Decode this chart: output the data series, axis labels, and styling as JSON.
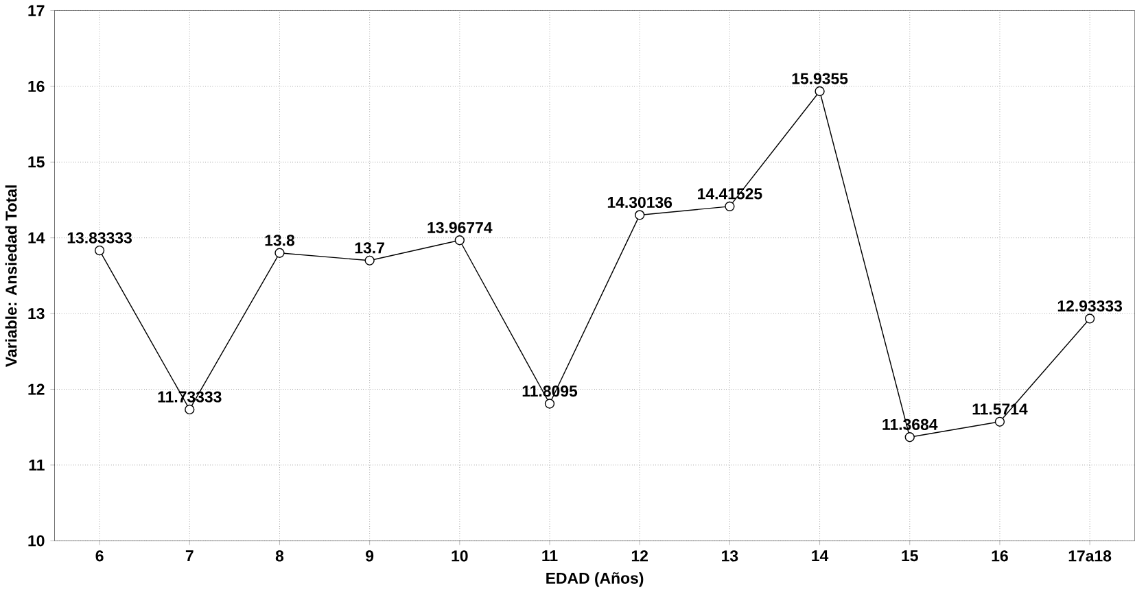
{
  "chart_data": {
    "type": "line",
    "xlabel": "EDAD (Años)",
    "ylabel": "Variable: Ansiedad Total",
    "categories": [
      "6",
      "7",
      "8",
      "9",
      "10",
      "11",
      "12",
      "13",
      "14",
      "15",
      "16",
      "17a18"
    ],
    "values": [
      13.83333,
      11.73333,
      13.8,
      13.7,
      13.96774,
      11.8095,
      14.30136,
      14.41525,
      15.9355,
      11.3684,
      11.5714,
      12.93333
    ],
    "color": "#000000",
    "marker": "circle",
    "line_style": "solid",
    "data_labels": true,
    "grid": true,
    "ylim": [
      10,
      17
    ],
    "yticks": [
      10,
      11,
      12,
      13,
      14,
      15,
      16,
      17
    ]
  }
}
